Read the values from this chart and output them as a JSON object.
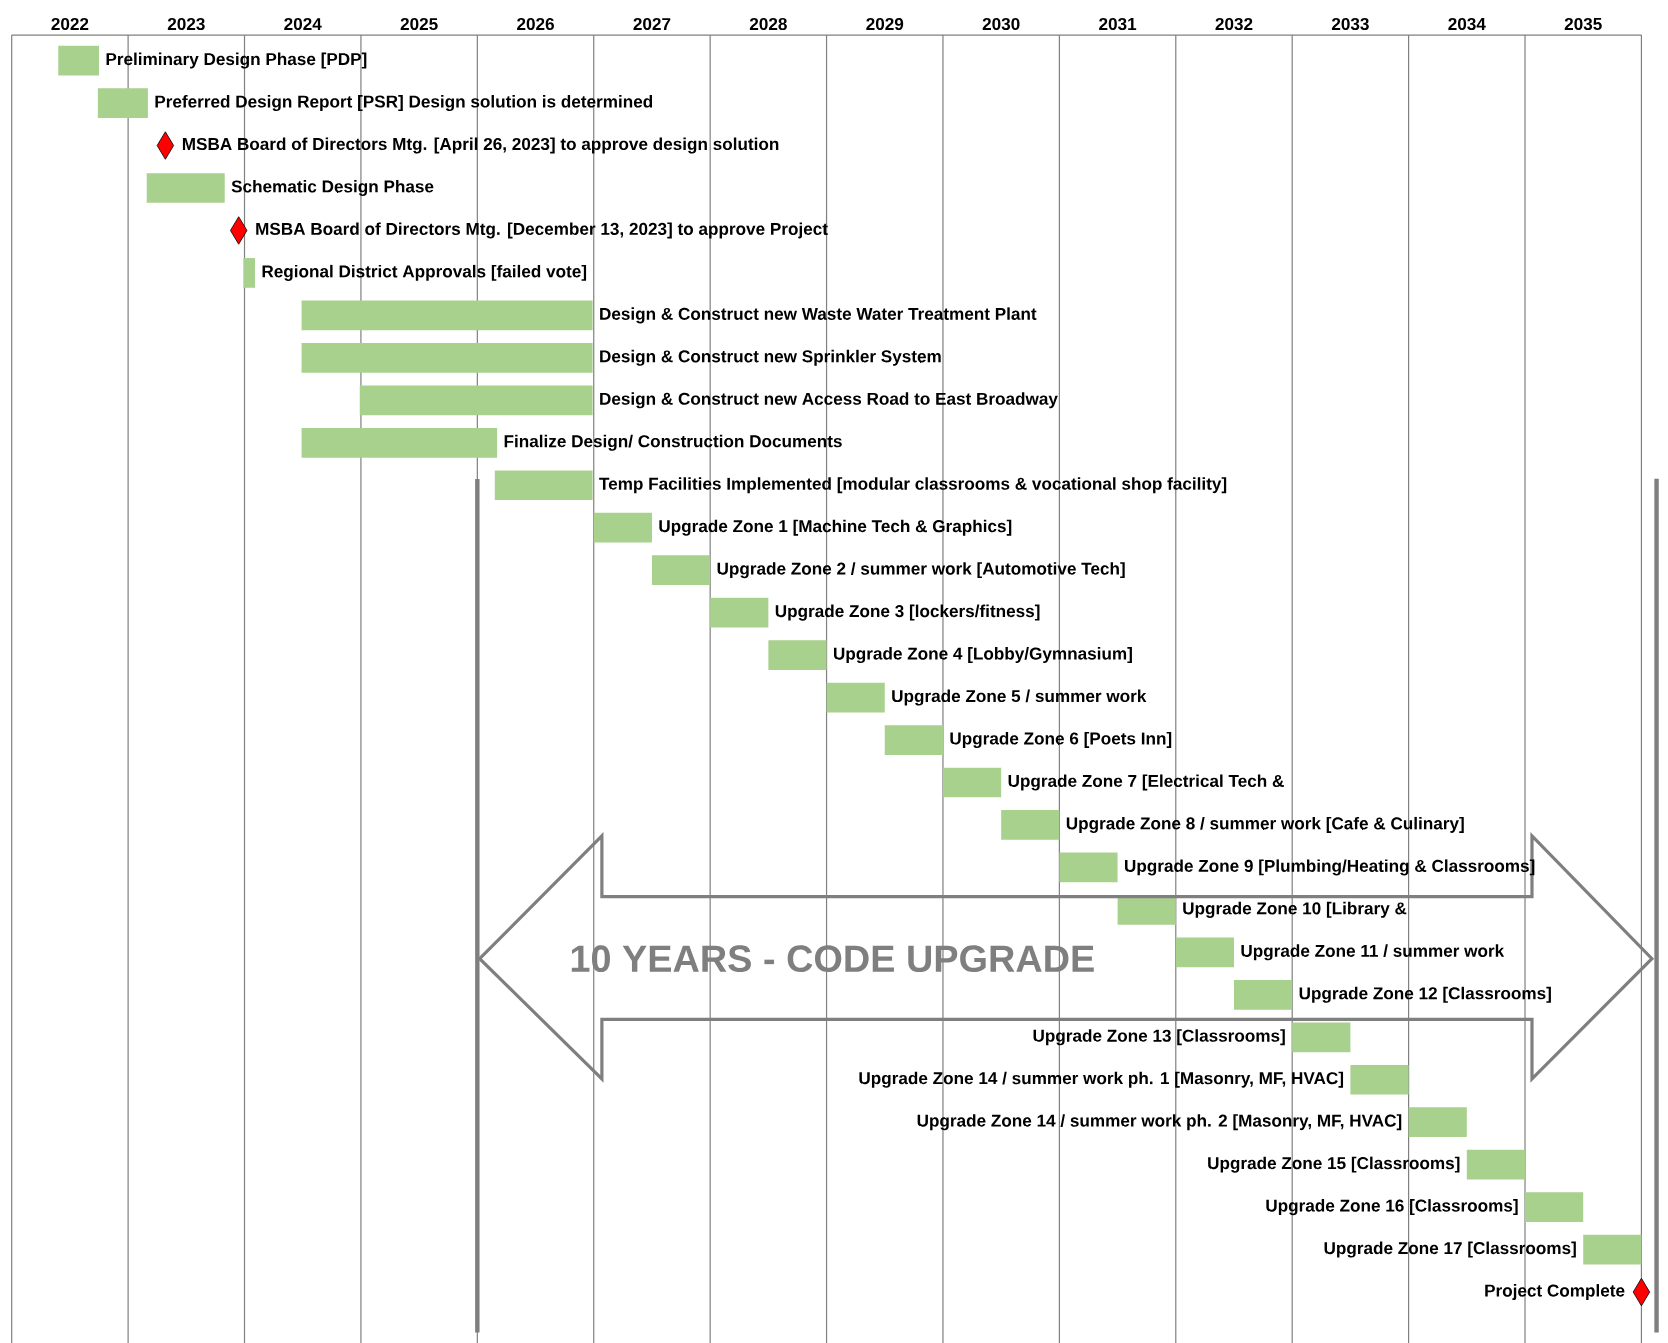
{
  "chart_data": {
    "type": "bar",
    "orientation": "horizontal",
    "grid": "x",
    "categories": [
      "Preliminary Design Phase [PDP]",
      "Preferred Design Report [PSR] Design solution is determined",
      "MSBA Board of Directors Mtg. [April 26, 2023] to approve design solution",
      "Schematic Design Phase",
      "MSBA Board of Directors Mtg. [December 13, 2023] to approve Project",
      "Regional District Approvals [failed vote]",
      "Design & Construct new Waste Water Treatment Plant",
      "Design & Construct new Sprinkler System",
      "Design & Construct new Access Road to East Broadway",
      "Finalize Design/ Construction Documents",
      "Temp Facilities Implemented [modular classrooms & vocational shop facility]",
      "Upgrade Zone 1 [Machine Tech & Graphics]",
      "Upgrade Zone 2 / summer work [Automotive Tech]",
      "Upgrade Zone 3 [lockers/fitness]",
      "Upgrade Zone 4 [Lobby/Gymnasium]",
      "Upgrade Zone 5 / summer work",
      "Upgrade Zone 6 [Poets Inn]",
      "Upgrade Zone 7 [Electrical Tech &",
      "Upgrade Zone 8 / summer work [Cafe & Culinary]",
      "Upgrade Zone 9 [Plumbing/Heating & Classrooms]",
      "Upgrade Zone 10 [Library &",
      "Upgrade Zone 11 / summer work",
      "Upgrade Zone 12 [Classrooms]",
      "Upgrade Zone 13 [Classrooms]",
      "Upgrade Zone 14 / summer work ph. 1 [Masonry, MF, HVAC]",
      "Upgrade Zone 14 / summer work ph. 2 [Masonry, MF, HVAC]",
      "Upgrade Zone 15 [Classrooms]",
      "Upgrade Zone 16 [Classrooms]",
      "Upgrade Zone 17 [Classrooms]",
      "Project Complete"
    ],
    "series": [
      {
        "type": "bar",
        "color": "#a9d18e",
        "base": [
          2022.4,
          2022.74,
          null,
          2023.16,
          null,
          2023.99,
          2024.49,
          2024.49,
          2024.99,
          2024.49,
          2026.15,
          2027.0,
          2027.5,
          2028.0,
          2028.5,
          2029.0,
          2029.5,
          2030.0,
          2030.5,
          2031.0,
          2031.5,
          2032.0,
          2032.5,
          2033.0,
          2033.5,
          2034.0,
          2034.5,
          2035.0,
          2035.5,
          null
        ],
        "values": [
          0.35,
          0.43,
          null,
          0.67,
          null,
          0.1,
          2.5,
          2.5,
          2.0,
          1.68,
          0.84,
          0.5,
          0.5,
          0.5,
          0.5,
          0.5,
          0.5,
          0.5,
          0.5,
          0.5,
          0.5,
          0.5,
          0.5,
          0.5,
          0.5,
          0.5,
          0.5,
          0.5,
          0.5,
          null
        ]
      },
      {
        "type": "scatter",
        "color": "#ff0000",
        "marker": "diamond",
        "values": [
          null,
          null,
          2023.32,
          null,
          2023.95,
          null,
          null,
          null,
          null,
          null,
          null,
          null,
          null,
          null,
          null,
          null,
          null,
          null,
          null,
          null,
          null,
          null,
          null,
          null,
          null,
          null,
          null,
          null,
          null,
          2036.0
        ]
      }
    ],
    "xlim": [
      2022,
      2036
    ],
    "xticks": [
      {
        "value": 2022,
        "label": null
      },
      {
        "value": 2022.5,
        "label": "2022"
      },
      {
        "value": 2023,
        "label": null
      },
      {
        "value": 2023.5,
        "label": "2023"
      },
      {
        "value": 2024,
        "label": null
      },
      {
        "value": 2024.5,
        "label": "2024"
      },
      {
        "value": 2025,
        "label": null
      },
      {
        "value": 2025.5,
        "label": "2025"
      },
      {
        "value": 2026,
        "label": null
      },
      {
        "value": 2026.5,
        "label": "2026"
      },
      {
        "value": 2027,
        "label": null
      },
      {
        "value": 2027.5,
        "label": "2027"
      },
      {
        "value": 2028,
        "label": null
      },
      {
        "value": 2028.5,
        "label": "2028"
      },
      {
        "value": 2029,
        "label": null
      },
      {
        "value": 2029.5,
        "label": "2029"
      },
      {
        "value": 2030,
        "label": null
      },
      {
        "value": 2030.5,
        "label": "2030"
      },
      {
        "value": 2031,
        "label": null
      },
      {
        "value": 2031.5,
        "label": "2031"
      },
      {
        "value": 2032,
        "label": null
      },
      {
        "value": 2032.5,
        "label": "2032"
      },
      {
        "value": 2033,
        "label": null
      },
      {
        "value": 2033.5,
        "label": "2033"
      },
      {
        "value": 2034,
        "label": null
      },
      {
        "value": 2034.5,
        "label": "2034"
      },
      {
        "value": 2035,
        "label": null
      },
      {
        "value": 2035.5,
        "label": "2035"
      },
      {
        "value": 2036,
        "label": null
      }
    ],
    "ref_lines": [
      {
        "axis": "x",
        "value": 2026,
        "color": "#7f7f7f"
      }
    ],
    "annotations": [
      "10 YEARS - CODE UPGRADE"
    ]
  }
}
